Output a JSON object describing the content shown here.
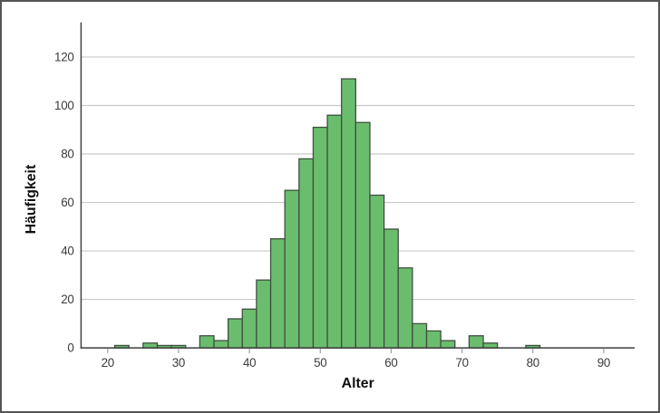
{
  "figure": {
    "background": "#ffffff",
    "frame_color": "#545454"
  },
  "chart_data": {
    "type": "bar",
    "subtype": "histogram",
    "title": "",
    "xlabel": "Alter",
    "ylabel": "Häufigkeit",
    "bin_width": 2,
    "bins": [
      {
        "range": [
          21,
          23
        ],
        "count": 1
      },
      {
        "range": [
          23,
          25
        ],
        "count": 0
      },
      {
        "range": [
          25,
          27
        ],
        "count": 2
      },
      {
        "range": [
          27,
          29
        ],
        "count": 1
      },
      {
        "range": [
          29,
          31
        ],
        "count": 1
      },
      {
        "range": [
          31,
          33
        ],
        "count": 0
      },
      {
        "range": [
          33,
          35
        ],
        "count": 5
      },
      {
        "range": [
          35,
          37
        ],
        "count": 3
      },
      {
        "range": [
          37,
          39
        ],
        "count": 12
      },
      {
        "range": [
          39,
          41
        ],
        "count": 16
      },
      {
        "range": [
          41,
          43
        ],
        "count": 28
      },
      {
        "range": [
          43,
          45
        ],
        "count": 45
      },
      {
        "range": [
          45,
          47
        ],
        "count": 65
      },
      {
        "range": [
          47,
          49
        ],
        "count": 78
      },
      {
        "range": [
          49,
          51
        ],
        "count": 91
      },
      {
        "range": [
          51,
          53
        ],
        "count": 96
      },
      {
        "range": [
          53,
          55
        ],
        "count": 111
      },
      {
        "range": [
          55,
          57
        ],
        "count": 93
      },
      {
        "range": [
          57,
          59
        ],
        "count": 63
      },
      {
        "range": [
          59,
          61
        ],
        "count": 49
      },
      {
        "range": [
          61,
          63
        ],
        "count": 33
      },
      {
        "range": [
          63,
          65
        ],
        "count": 10
      },
      {
        "range": [
          65,
          67
        ],
        "count": 7
      },
      {
        "range": [
          67,
          69
        ],
        "count": 3
      },
      {
        "range": [
          69,
          71
        ],
        "count": 0
      },
      {
        "range": [
          71,
          73
        ],
        "count": 5
      },
      {
        "range": [
          73,
          75
        ],
        "count": 2
      },
      {
        "range": [
          75,
          77
        ],
        "count": 0
      },
      {
        "range": [
          77,
          79
        ],
        "count": 0
      },
      {
        "range": [
          79,
          81
        ],
        "count": 1
      }
    ],
    "x_ticks": [
      20,
      30,
      40,
      50,
      60,
      70,
      80,
      90
    ],
    "y_ticks": [
      0,
      20,
      40,
      60,
      80,
      100,
      120
    ],
    "xlim": [
      16.3,
      94.3
    ],
    "ylim": [
      0,
      134
    ],
    "grid": "horizontal",
    "legend": "none",
    "colors": {
      "bar_fill": "#6bbd6e",
      "bar_stroke": "#3e4e3f",
      "grid": "#c9c9c9",
      "axis": "#3f3f3f",
      "tick_mark": "#9b9b9b",
      "tick_label": "#3c3c3c",
      "axis_label": "#0f0f0f"
    }
  }
}
